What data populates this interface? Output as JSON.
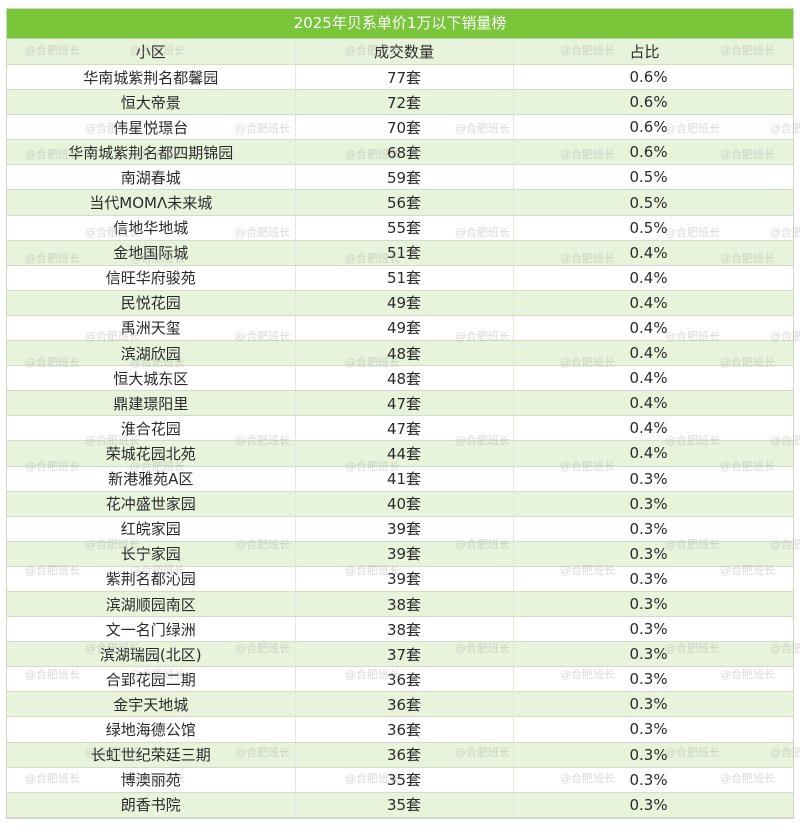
{
  "title": "2025年贝系单价1万以下销量榜",
  "columns": [
    "小区",
    "成交数量",
    "占比"
  ],
  "rows": [
    {
      "name": "华南城紫荆名都馨园",
      "count": "77套",
      "ratio": "0.6%"
    },
    {
      "name": "恒大帝景",
      "count": "72套",
      "ratio": "0.6%"
    },
    {
      "name": "伟星悦璟台",
      "count": "70套",
      "ratio": "0.6%"
    },
    {
      "name": "华南城紫荆名都四期锦园",
      "count": "68套",
      "ratio": "0.6%"
    },
    {
      "name": "南湖春城",
      "count": "59套",
      "ratio": "0.5%"
    },
    {
      "name": "当代MOMΛ未来城",
      "count": "56套",
      "ratio": "0.5%"
    },
    {
      "name": "信地华地城",
      "count": "55套",
      "ratio": "0.5%"
    },
    {
      "name": "金地国际城",
      "count": "51套",
      "ratio": "0.4%"
    },
    {
      "name": "信旺华府骏苑",
      "count": "51套",
      "ratio": "0.4%"
    },
    {
      "name": "民悦花园",
      "count": "49套",
      "ratio": "0.4%"
    },
    {
      "name": "禹洲天玺",
      "count": "49套",
      "ratio": "0.4%"
    },
    {
      "name": "滨湖欣园",
      "count": "48套",
      "ratio": "0.4%"
    },
    {
      "name": "恒大城东区",
      "count": "48套",
      "ratio": "0.4%"
    },
    {
      "name": "鼎建璟阳里",
      "count": "47套",
      "ratio": "0.4%"
    },
    {
      "name": "淮合花园",
      "count": "47套",
      "ratio": "0.4%"
    },
    {
      "name": "荣城花园北苑",
      "count": "44套",
      "ratio": "0.4%"
    },
    {
      "name": "新港雅苑A区",
      "count": "41套",
      "ratio": "0.3%"
    },
    {
      "name": "花冲盛世家园",
      "count": "40套",
      "ratio": "0.3%"
    },
    {
      "name": "红皖家园",
      "count": "39套",
      "ratio": "0.3%"
    },
    {
      "name": "长宁家园",
      "count": "39套",
      "ratio": "0.3%"
    },
    {
      "name": "紫荆名都沁园",
      "count": "39套",
      "ratio": "0.3%"
    },
    {
      "name": "滨湖顺园南区",
      "count": "38套",
      "ratio": "0.3%"
    },
    {
      "name": "文一名门绿洲",
      "count": "38套",
      "ratio": "0.3%"
    },
    {
      "name": "滨湖瑞园(北区)",
      "count": "37套",
      "ratio": "0.3%"
    },
    {
      "name": "合郢花园二期",
      "count": "36套",
      "ratio": "0.3%"
    },
    {
      "name": "金宇天地城",
      "count": "36套",
      "ratio": "0.3%"
    },
    {
      "name": "绿地海德公馆",
      "count": "36套",
      "ratio": "0.3%"
    },
    {
      "name": "长虹世纪荣廷三期",
      "count": "36套",
      "ratio": "0.3%"
    },
    {
      "name": "博澳丽苑",
      "count": "35套",
      "ratio": "0.3%"
    },
    {
      "name": "朗香书院",
      "count": "35套",
      "ratio": "0.3%"
    }
  ],
  "watermark": "@合肥班长",
  "colors": {
    "header_green": "#79c63a",
    "stripe_green": "#e8f3dc"
  }
}
